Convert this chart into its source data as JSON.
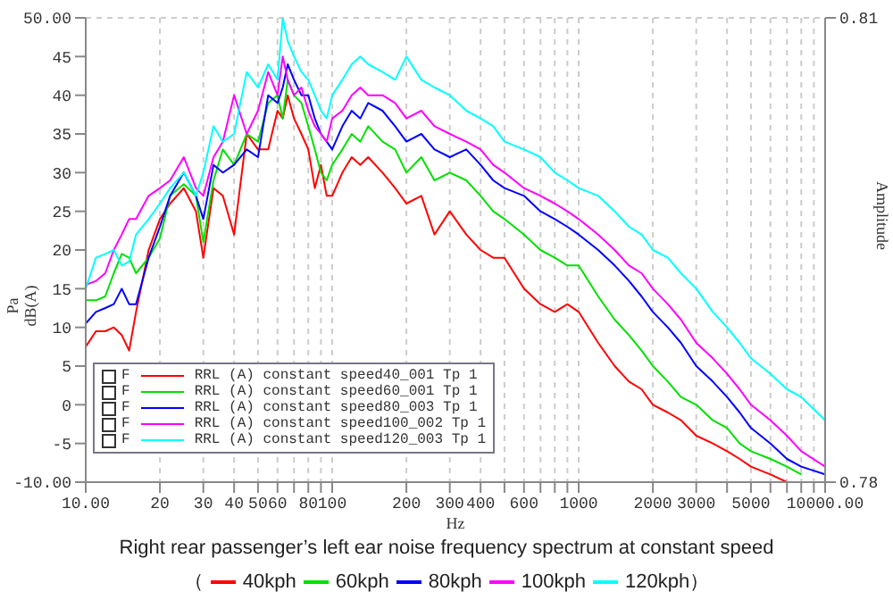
{
  "chart_data": {
    "type": "line",
    "title": "Right rear passenger’s left ear noise frequency spectrum at constant speed",
    "xlabel": "Hz",
    "ylabel": "Pa\ndB(A)",
    "y2label": "Amplitude",
    "log": "x",
    "grid": true,
    "legend": "bottom",
    "marker": "none",
    "line_style": "solid",
    "xlim": [
      10,
      10000
    ],
    "xticks": [
      {
        "value": 10,
        "label": "10.00"
      },
      20,
      30,
      40,
      50,
      60,
      {
        "value": 70,
        "label": null
      },
      80,
      {
        "value": 90,
        "label": null
      },
      100,
      200,
      300,
      400,
      {
        "value": 500,
        "label": null
      },
      600,
      {
        "value": 700,
        "label": null
      },
      {
        "value": 800,
        "label": null
      },
      {
        "value": 900,
        "label": null
      },
      1000,
      2000,
      3000,
      {
        "value": 4000,
        "label": null
      },
      5000,
      {
        "value": 6000,
        "label": null
      },
      {
        "value": 7000,
        "label": null
      },
      {
        "value": 8000,
        "label": null
      },
      {
        "value": 9000,
        "label": null
      },
      {
        "value": 10000,
        "label": "10000.00"
      }
    ],
    "ylim": [
      -10,
      50
    ],
    "yticks": [
      {
        "value": -10,
        "label": "-10.00"
      },
      -5,
      0,
      5,
      10,
      15,
      20,
      25,
      30,
      35,
      40,
      45,
      {
        "value": 50,
        "label": "50.00"
      }
    ],
    "y2lim": [
      0.78,
      0.81
    ],
    "y2ticks": [
      0.78,
      0.81
    ],
    "x": [
      10,
      11,
      12,
      13,
      14,
      15,
      16,
      18,
      20,
      22,
      25,
      28,
      30,
      33,
      36,
      40,
      45,
      50,
      55,
      60,
      63,
      66,
      70,
      75,
      80,
      85,
      90,
      95,
      100,
      110,
      120,
      130,
      140,
      160,
      180,
      200,
      230,
      260,
      300,
      350,
      400,
      450,
      500,
      600,
      700,
      800,
      900,
      1000,
      1200,
      1400,
      1600,
      1800,
      2000,
      2300,
      2600,
      3000,
      3500,
      4000,
      4500,
      5000,
      6000,
      7000,
      8000,
      10000
    ],
    "series": [
      {
        "name": "40kph",
        "color": "#ff0000",
        "values": [
          7.5,
          9.5,
          9.5,
          10,
          9,
          7,
          12,
          20,
          24,
          26,
          28,
          25,
          19,
          28,
          27,
          22,
          35,
          33,
          33,
          38,
          37,
          40,
          37,
          35,
          33,
          28,
          31,
          27,
          27,
          30,
          32,
          31,
          32,
          30,
          28,
          26,
          27,
          22,
          25,
          22,
          20,
          19,
          19,
          15,
          13,
          12,
          13,
          12,
          8,
          5,
          3,
          2,
          0,
          -1,
          -2,
          -4,
          -5,
          -6,
          -7,
          -8,
          -9,
          -10,
          null,
          null
        ]
      },
      {
        "name": "60kph",
        "color": "#00e000",
        "values": [
          13.5,
          13.5,
          14,
          17,
          19.5,
          19,
          17,
          19,
          21.5,
          27,
          28.5,
          27,
          21,
          29,
          33,
          31,
          35,
          34,
          39,
          40,
          37,
          42,
          40,
          39,
          36,
          33,
          30,
          29,
          31,
          33,
          35,
          34,
          36,
          34,
          33,
          30,
          32,
          29,
          30,
          29,
          27,
          25,
          24,
          22,
          20,
          19,
          18,
          18,
          14,
          11,
          9,
          7,
          5,
          3,
          1,
          0,
          -2,
          -3,
          -5,
          -6,
          -7,
          -8,
          -9,
          null
        ]
      },
      {
        "name": "80kph",
        "color": "#0000ff",
        "values": [
          10.5,
          12,
          12.5,
          13,
          15,
          13,
          13,
          19,
          23,
          27,
          30,
          27,
          24,
          31,
          30,
          31,
          33,
          32,
          40,
          39,
          41,
          44,
          42,
          40,
          40,
          37,
          35,
          34,
          33,
          36,
          38,
          37,
          39,
          38,
          36,
          34,
          35,
          33,
          32,
          33,
          31,
          29,
          28,
          27,
          25,
          24,
          23,
          22,
          20,
          18,
          16,
          14,
          12,
          10,
          8,
          5,
          3,
          1,
          -1,
          -3,
          -5,
          -7,
          -8,
          -9
        ]
      },
      {
        "name": "100kph",
        "color": "#ff00ff",
        "values": [
          15.5,
          16,
          17,
          20,
          22,
          24,
          24,
          27,
          28,
          29,
          32,
          28,
          27,
          32,
          34,
          40,
          35,
          38,
          43,
          40,
          45,
          42,
          40,
          41,
          38,
          36,
          35,
          34,
          37,
          38,
          40,
          41,
          40,
          40,
          39,
          37,
          38,
          36,
          35,
          34,
          33,
          31,
          30,
          28,
          27,
          26,
          25,
          24,
          22,
          20,
          18,
          17,
          15,
          13,
          11,
          8,
          6,
          4,
          2,
          0,
          -2,
          -4,
          -6,
          -8
        ]
      },
      {
        "name": "120kph",
        "color": "#00ffff",
        "values": [
          15,
          19,
          19.5,
          20,
          18,
          18.5,
          22,
          24,
          26,
          28,
          30,
          27,
          30,
          36,
          34,
          35,
          43,
          41,
          44,
          42,
          50,
          47,
          45,
          43,
          42,
          40,
          38,
          37,
          40,
          42,
          44,
          45,
          44,
          43,
          42,
          45,
          42,
          41,
          40,
          38,
          37,
          36,
          34,
          33,
          32,
          30,
          29,
          28,
          27,
          25,
          23,
          22,
          20,
          19,
          17,
          15,
          12,
          10,
          8,
          6,
          4,
          2,
          1,
          -2
        ]
      }
    ],
    "annotations": [
      "F RRL (A) constant speed40_001 Tp 1",
      "F RRL (A) constant speed60_001 Tp 1",
      "F RRL (A) constant speed80_003 Tp 1",
      "F RRL (A) constant speed100_002 Tp 1",
      "F RRL (A) constant speed120_003 Tp 1",
      "（",
      "）"
    ]
  }
}
